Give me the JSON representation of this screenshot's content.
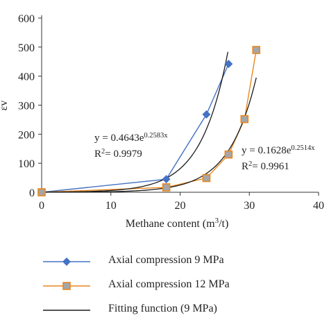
{
  "chart_data": {
    "type": "scatter",
    "xlabel": "Methane content (m³/t)",
    "ylabel_fragment": "εv",
    "xlim": [
      0,
      40
    ],
    "ylim": [
      0,
      600
    ],
    "x_ticks": [
      0,
      10,
      20,
      30,
      40
    ],
    "y_ticks": [
      0,
      100,
      200,
      300,
      400,
      500,
      600
    ],
    "grid": false,
    "legend_placement": "bottom",
    "series": [
      {
        "name": "Axial compression 9 MPa",
        "kind": "points",
        "marker": "diamond",
        "color": "#4472C4",
        "x": [
          0,
          18,
          23.8,
          27
        ],
        "y": [
          0,
          45,
          268,
          442
        ]
      },
      {
        "name": "Axial compression 12 MPa",
        "kind": "points",
        "marker": "square",
        "color": "#E8871E",
        "x": [
          0,
          18,
          23.8,
          27,
          29.3,
          31
        ],
        "y": [
          0,
          17,
          49,
          130,
          252,
          490
        ]
      },
      {
        "name": "Fitting function (9 MPa)",
        "kind": "fit",
        "color": "#1a1a1a",
        "a": 0.4643,
        "b": 0.2583,
        "x_range": [
          0,
          26.9
        ]
      },
      {
        "kind": "fit",
        "color": "#1a1a1a",
        "a": 0.1628,
        "b": 0.2514,
        "x_range": [
          0,
          31
        ]
      }
    ],
    "annotations": [
      {
        "eq_prefix": "y = 0.4643e",
        "eq_exp": "0.2583x",
        "r2_label": "R",
        "r2_sup": "2",
        "r2_value": "= 0.9979"
      },
      {
        "eq_prefix": "y = 0.1628e",
        "eq_exp": "0.2514x",
        "r2_label": "R",
        "r2_sup": "2",
        "r2_value": "= 0.9961"
      }
    ]
  },
  "colors": {
    "blue": "#4472C4",
    "orange": "#E8871E",
    "black": "#1a1a1a",
    "axis": "#333333"
  }
}
